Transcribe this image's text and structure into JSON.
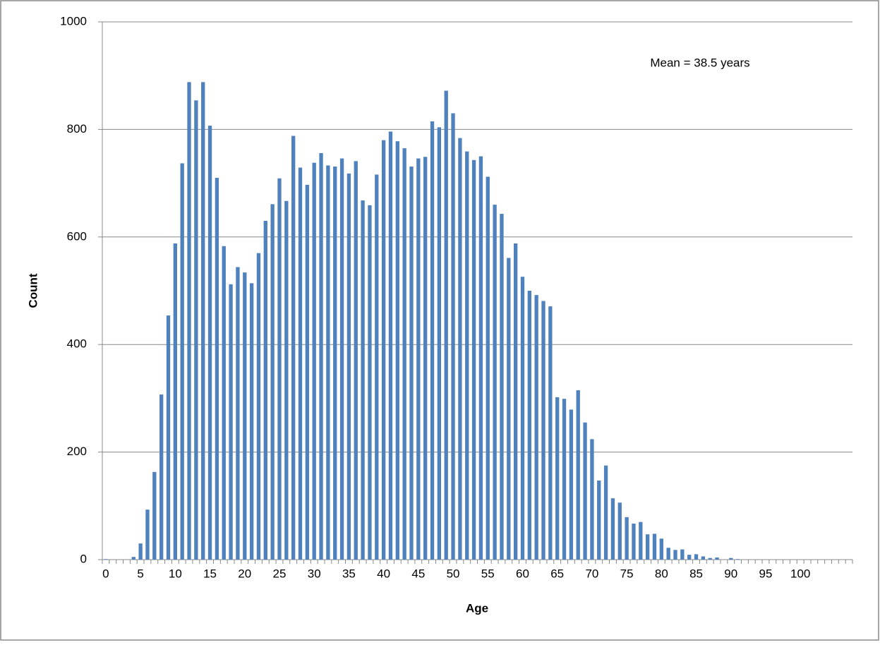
{
  "chart_data": {
    "type": "bar",
    "x_label": "Age",
    "y_label": "Count",
    "annotation": "Mean = 38.5 years",
    "categories": [
      "0",
      null,
      null,
      null,
      null,
      "5",
      null,
      null,
      null,
      null,
      "10",
      null,
      null,
      null,
      null,
      "15",
      null,
      null,
      null,
      null,
      "20",
      null,
      null,
      null,
      null,
      "25",
      null,
      null,
      null,
      null,
      "30",
      null,
      null,
      null,
      null,
      "35",
      null,
      null,
      null,
      null,
      "40",
      null,
      null,
      null,
      null,
      "45",
      null,
      null,
      null,
      null,
      "50",
      null,
      null,
      null,
      null,
      "55",
      null,
      null,
      null,
      null,
      "60",
      null,
      null,
      null,
      null,
      "65",
      null,
      null,
      null,
      null,
      "70",
      null,
      null,
      null,
      null,
      "75",
      null,
      null,
      null,
      null,
      "80",
      null,
      null,
      null,
      null,
      "85",
      null,
      null,
      null,
      null,
      "90",
      null,
      null,
      null,
      null,
      "95",
      null,
      null,
      null,
      null,
      "100",
      null,
      null,
      null,
      null,
      null,
      null,
      null
    ],
    "values": [
      1,
      0,
      0,
      0,
      5,
      30,
      93,
      163,
      307,
      454,
      588,
      737,
      888,
      854,
      888,
      807,
      710,
      583,
      512,
      544,
      534,
      514,
      570,
      630,
      661,
      709,
      667,
      788,
      729,
      697,
      738,
      756,
      733,
      731,
      746,
      718,
      741,
      668,
      659,
      716,
      780,
      796,
      778,
      765,
      731,
      746,
      749,
      815,
      804,
      872,
      830,
      784,
      759,
      743,
      750,
      712,
      660,
      643,
      561,
      588,
      526,
      500,
      492,
      481,
      471,
      302,
      299,
      279,
      315,
      255,
      224,
      147,
      175,
      114,
      106,
      79,
      67,
      70,
      47,
      48,
      39,
      22,
      18,
      19,
      9,
      10,
      6,
      3,
      4,
      0,
      3,
      1,
      0,
      0,
      0,
      0,
      0,
      0,
      0,
      0,
      0,
      0,
      0,
      0,
      0,
      0,
      0,
      0
    ],
    "color": "#4f81bd",
    "ylim": [
      0,
      1000
    ],
    "yticks": [
      0,
      200,
      400,
      600,
      800,
      1000
    ],
    "grid": true
  }
}
